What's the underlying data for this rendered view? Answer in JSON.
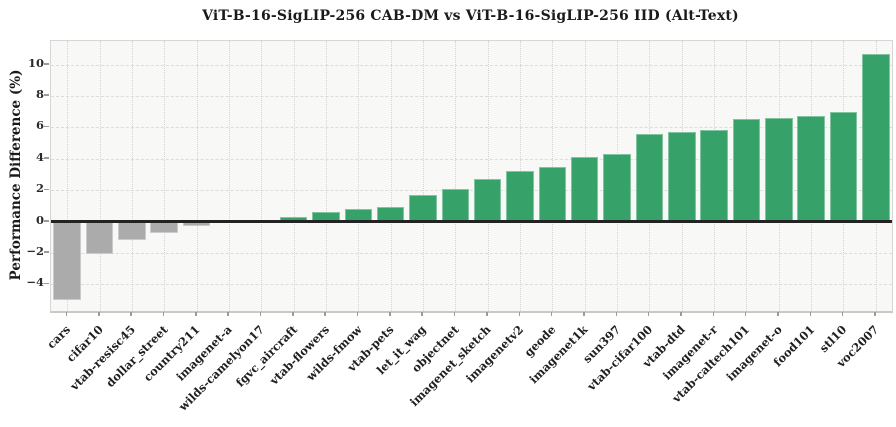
{
  "chart_data": {
    "type": "bar",
    "title": "ViT-B-16-SigLIP-256 CAB-DM vs ViT-B-16-SigLIP-256 IID (Alt-Text)",
    "ylabel": "Performance Difference (%)",
    "xlabel": "",
    "legend": "none",
    "grid": {
      "horizontal": "dashed",
      "vertical": "dotted"
    },
    "ylim": [
      -5.7,
      11.5
    ],
    "yticks": [
      10,
      8,
      6,
      4,
      2,
      0,
      -2,
      -4
    ],
    "categories": [
      "cars",
      "cifar10",
      "vtab-resisc45",
      "dollar_street",
      "country211",
      "imagenet-a",
      "wilds-camelyon17",
      "fgvc_aircraft",
      "vtab-flowers",
      "wilds-fmow",
      "vtab-pets",
      "let_it_wag",
      "objectnet",
      "imagenet_sketch",
      "imagenetv2",
      "geode",
      "imagenet1k",
      "sun397",
      "vtab-cifar100",
      "vtab-dtd",
      "imagenet-r",
      "vtab-caltech101",
      "imagenet-o",
      "food101",
      "stl10",
      "voc2007"
    ],
    "values": [
      -5.0,
      -2.1,
      -1.2,
      -0.7,
      -0.3,
      0.0,
      0.0,
      0.3,
      0.6,
      0.8,
      0.9,
      1.7,
      2.1,
      2.7,
      3.2,
      3.5,
      4.1,
      4.3,
      5.6,
      5.7,
      5.8,
      6.5,
      6.6,
      6.7,
      7.0,
      10.7
    ],
    "colors": {
      "positive_bar": "#36a169",
      "negative_bar": "#ababab",
      "zero_line": "#232323",
      "plot_background": "#f8f8f7",
      "spine": "#d6d6d4",
      "grid_line": "#dcdcda"
    }
  }
}
